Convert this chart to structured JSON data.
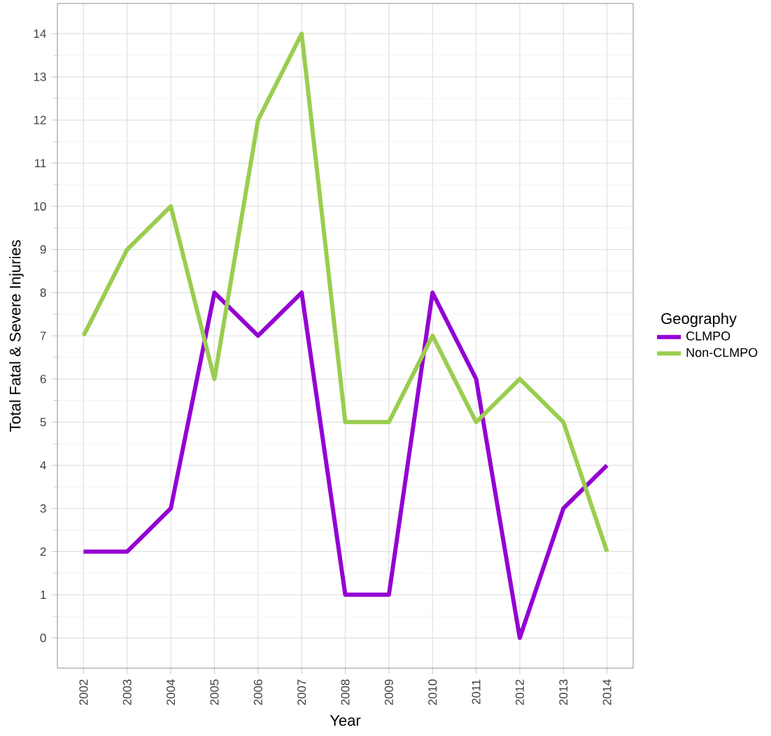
{
  "chart_data": {
    "type": "line",
    "xlabel": "Year",
    "ylabel": "Total Fatal & Severe Injuries",
    "legend_title": "Geography",
    "categories": [
      "2002",
      "2003",
      "2004",
      "2005",
      "2006",
      "2007",
      "2008",
      "2009",
      "2010",
      "2011",
      "2012",
      "2013",
      "2014"
    ],
    "series": [
      {
        "name": "CLMPO",
        "color": "#9400d3",
        "values": [
          2,
          2,
          3,
          8,
          7,
          8,
          1,
          1,
          8,
          6,
          0,
          3,
          4
        ]
      },
      {
        "name": "Non-CLMPO",
        "color": "#9acd4f",
        "values": [
          7,
          9,
          10,
          6,
          12,
          14,
          5,
          5,
          7,
          5,
          6,
          5,
          2
        ]
      }
    ],
    "ylim": [
      -0.7,
      14.7
    ],
    "yticks": [
      0,
      1,
      2,
      3,
      4,
      5,
      6,
      7,
      8,
      9,
      10,
      11,
      12,
      13,
      14
    ],
    "grid": true,
    "legend": "right",
    "marker": "none",
    "line_style": "solid"
  }
}
